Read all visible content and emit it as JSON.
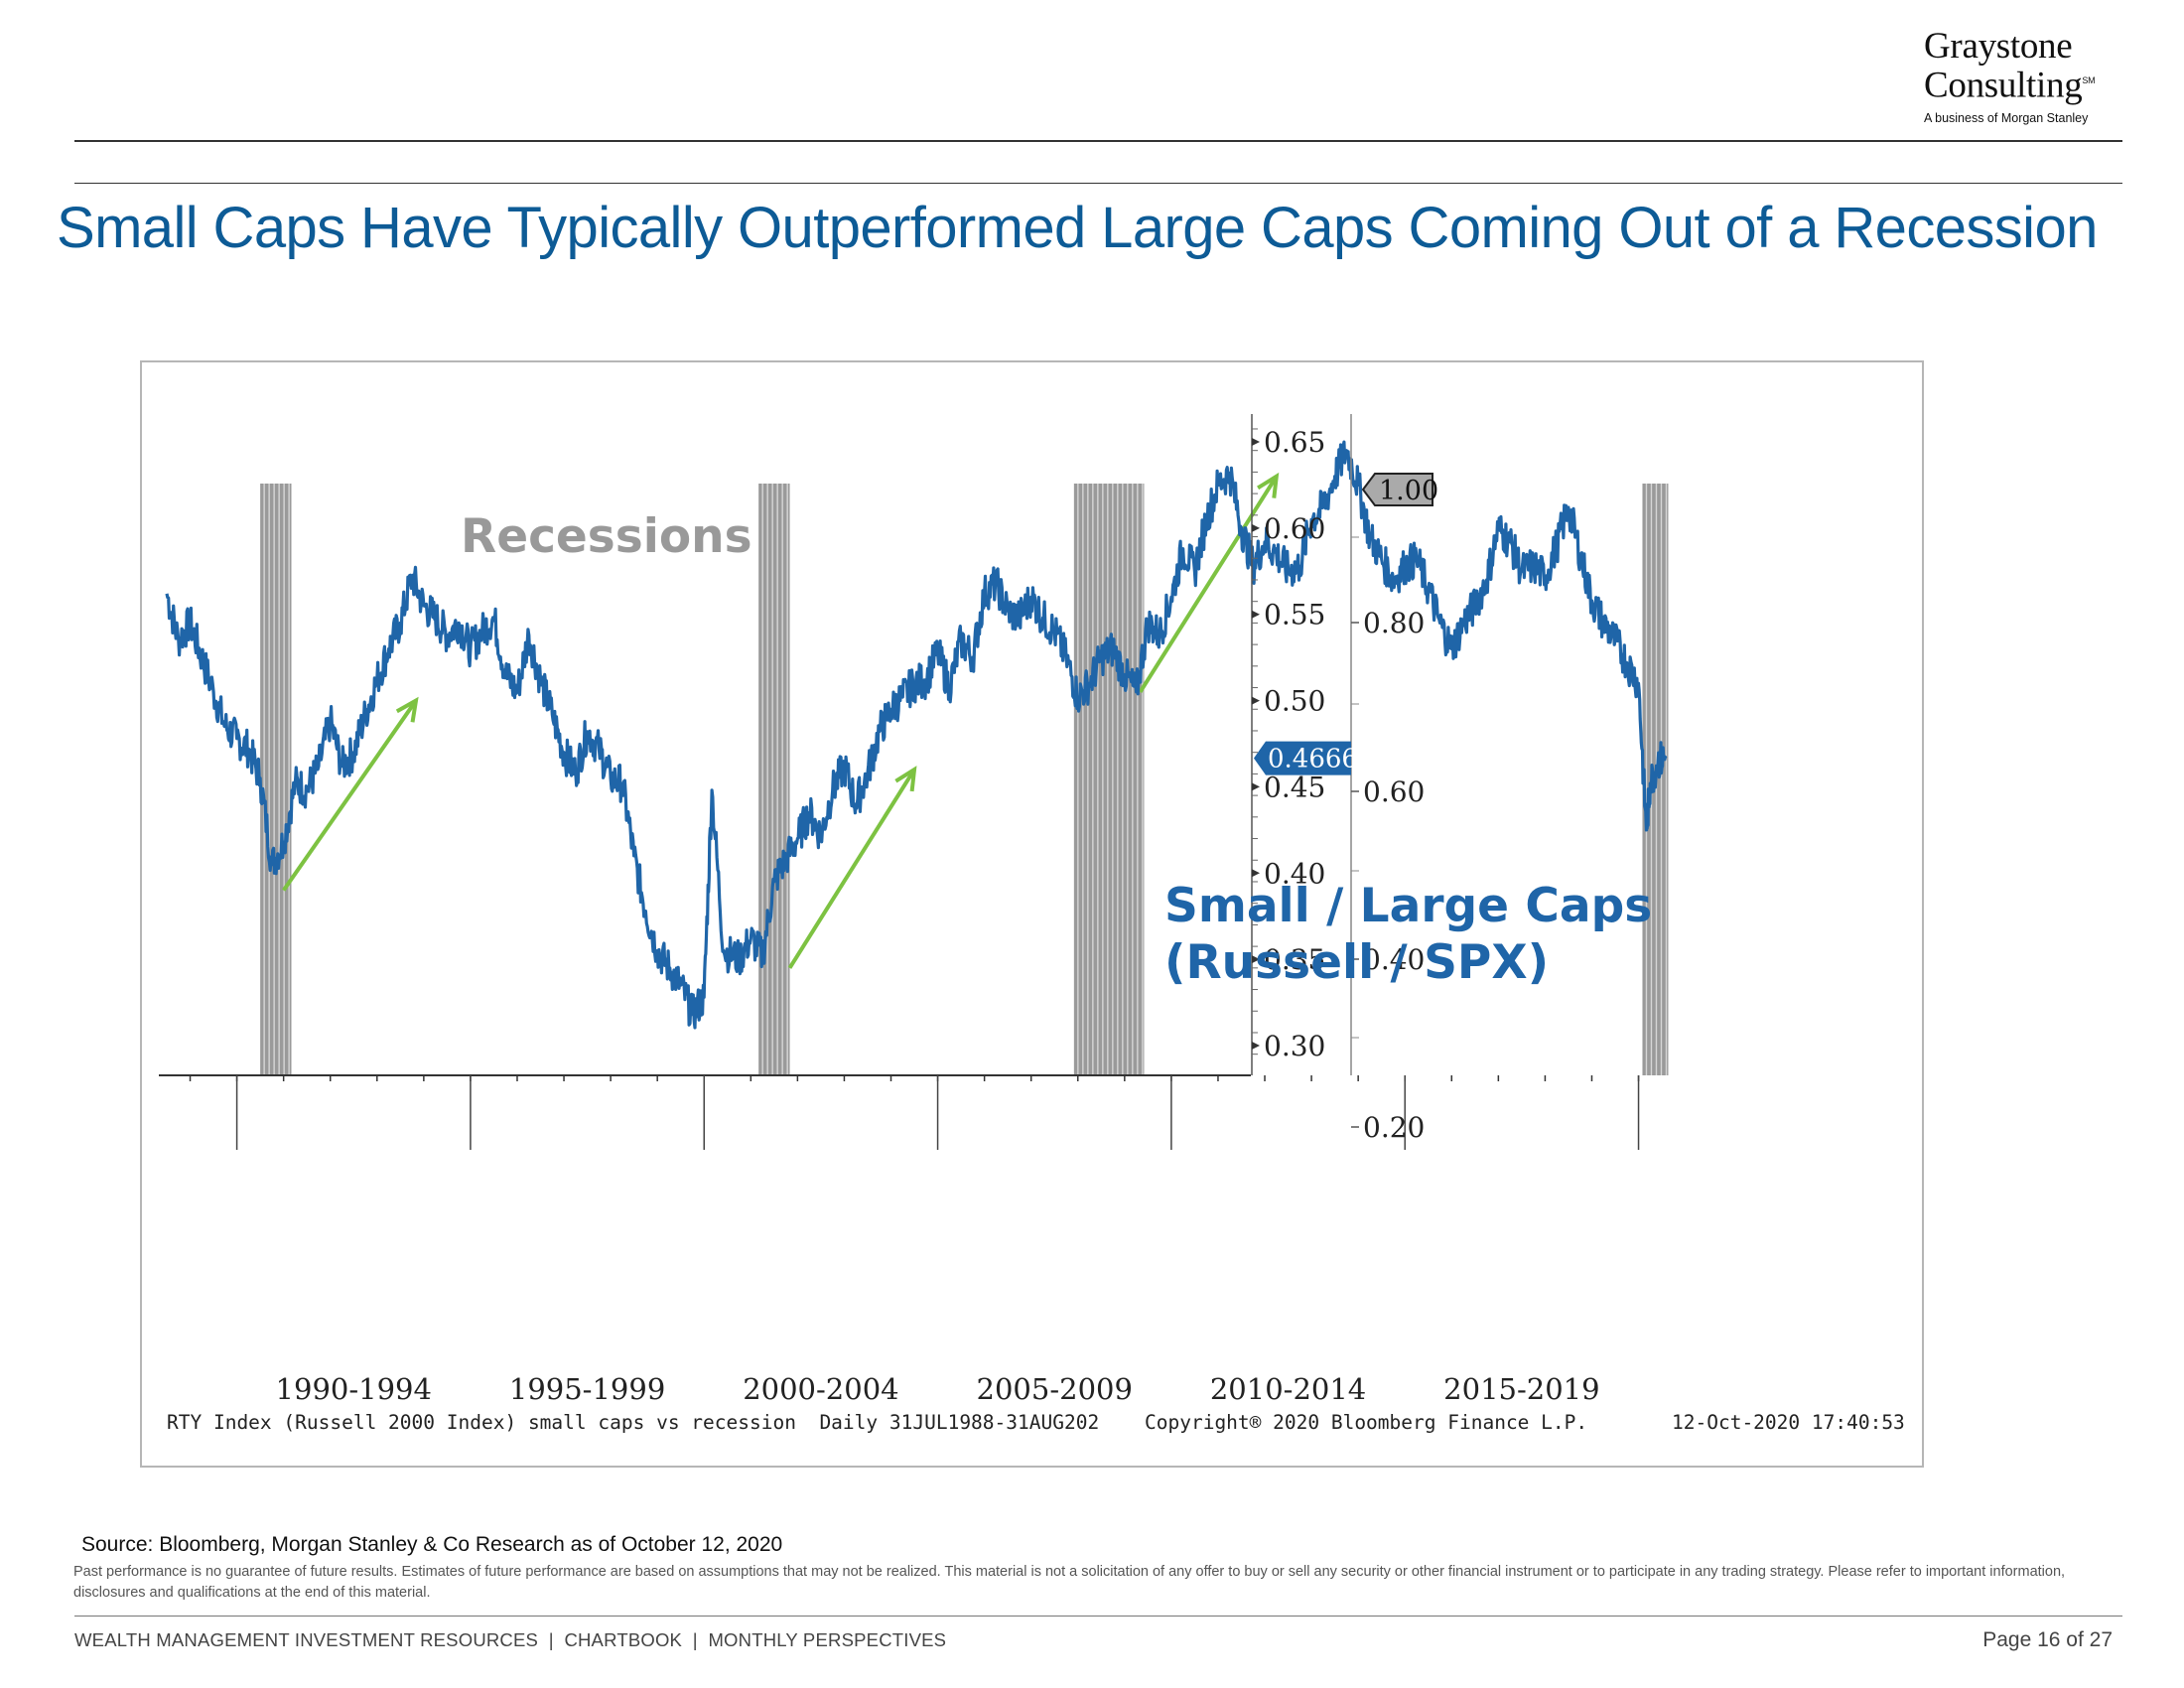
{
  "header": {
    "logo_line1": "Graystone",
    "logo_line2": "Consulting",
    "logo_mark": "SM",
    "logo_sub": "A business of Morgan Stanley"
  },
  "title": "Small Caps Have Typically Outperformed Large Caps Coming Out of a Recession",
  "chart_data": {
    "type": "line",
    "series": [
      {
        "name": "Small / Large Caps (Russell / SPX)",
        "color": "#1f65a8",
        "points": [
          [
            "1988-07",
            0.562
          ],
          [
            "1988-10",
            0.535
          ],
          [
            "1989-01",
            0.545
          ],
          [
            "1989-04",
            0.525
          ],
          [
            "1989-07",
            0.505
          ],
          [
            "1989-10",
            0.485
          ],
          [
            "1990-01",
            0.478
          ],
          [
            "1990-04",
            0.472
          ],
          [
            "1990-07",
            0.455
          ],
          [
            "1990-10",
            0.405
          ],
          [
            "1991-01",
            0.418
          ],
          [
            "1991-04",
            0.452
          ],
          [
            "1991-07",
            0.448
          ],
          [
            "1991-10",
            0.462
          ],
          [
            "1992-01",
            0.488
          ],
          [
            "1992-04",
            0.462
          ],
          [
            "1992-07",
            0.47
          ],
          [
            "1992-10",
            0.492
          ],
          [
            "1993-01",
            0.512
          ],
          [
            "1993-04",
            0.53
          ],
          [
            "1993-07",
            0.545
          ],
          [
            "1993-10",
            0.572
          ],
          [
            "1994-01",
            0.555
          ],
          [
            "1994-04",
            0.548
          ],
          [
            "1994-07",
            0.538
          ],
          [
            "1994-10",
            0.545
          ],
          [
            "1995-01",
            0.53
          ],
          [
            "1995-04",
            0.54
          ],
          [
            "1995-07",
            0.548
          ],
          [
            "1995-10",
            0.515
          ],
          [
            "1996-01",
            0.505
          ],
          [
            "1996-04",
            0.538
          ],
          [
            "1996-07",
            0.512
          ],
          [
            "1996-10",
            0.492
          ],
          [
            "1997-01",
            0.47
          ],
          [
            "1997-04",
            0.458
          ],
          [
            "1997-07",
            0.482
          ],
          [
            "1997-10",
            0.472
          ],
          [
            "1998-01",
            0.455
          ],
          [
            "1998-04",
            0.452
          ],
          [
            "1998-07",
            0.41
          ],
          [
            "1998-10",
            0.378
          ],
          [
            "1999-01",
            0.355
          ],
          [
            "1999-04",
            0.345
          ],
          [
            "1999-07",
            0.335
          ],
          [
            "1999-10",
            0.318
          ],
          [
            "2000-01",
            0.328
          ],
          [
            "2000-03",
            0.448
          ],
          [
            "2000-06",
            0.355
          ],
          [
            "2000-10",
            0.35
          ],
          [
            "2001-01",
            0.362
          ],
          [
            "2001-04",
            0.352
          ],
          [
            "2001-07",
            0.395
          ],
          [
            "2001-10",
            0.408
          ],
          [
            "2002-01",
            0.42
          ],
          [
            "2002-04",
            0.435
          ],
          [
            "2002-07",
            0.422
          ],
          [
            "2002-10",
            0.448
          ],
          [
            "2003-01",
            0.462
          ],
          [
            "2003-04",
            0.44
          ],
          [
            "2003-07",
            0.458
          ],
          [
            "2003-10",
            0.482
          ],
          [
            "2004-01",
            0.495
          ],
          [
            "2004-04",
            0.502
          ],
          [
            "2004-07",
            0.51
          ],
          [
            "2004-10",
            0.512
          ],
          [
            "2005-01",
            0.528
          ],
          [
            "2005-04",
            0.508
          ],
          [
            "2005-07",
            0.535
          ],
          [
            "2005-10",
            0.525
          ],
          [
            "2006-01",
            0.562
          ],
          [
            "2006-04",
            0.568
          ],
          [
            "2006-07",
            0.552
          ],
          [
            "2006-10",
            0.548
          ],
          [
            "2007-01",
            0.56
          ],
          [
            "2007-04",
            0.548
          ],
          [
            "2007-07",
            0.54
          ],
          [
            "2007-10",
            0.525
          ],
          [
            "2008-01",
            0.502
          ],
          [
            "2008-04",
            0.51
          ],
          [
            "2008-07",
            0.525
          ],
          [
            "2008-10",
            0.53
          ],
          [
            "2009-01",
            0.515
          ],
          [
            "2009-04",
            0.505
          ],
          [
            "2009-07",
            0.545
          ],
          [
            "2009-10",
            0.538
          ],
          [
            "2010-01",
            0.56
          ],
          [
            "2010-04",
            0.588
          ],
          [
            "2010-07",
            0.575
          ],
          [
            "2010-10",
            0.605
          ],
          [
            "2011-01",
            0.625
          ],
          [
            "2011-04",
            0.632
          ],
          [
            "2011-07",
            0.6
          ],
          [
            "2011-10",
            0.578
          ],
          [
            "2012-01",
            0.592
          ],
          [
            "2012-04",
            0.585
          ],
          [
            "2012-07",
            0.575
          ],
          [
            "2012-10",
            0.578
          ],
          [
            "2013-01",
            0.605
          ],
          [
            "2013-04",
            0.612
          ],
          [
            "2013-07",
            0.63
          ],
          [
            "2013-10",
            0.645
          ],
          [
            "2014-01",
            0.625
          ],
          [
            "2014-04",
            0.595
          ],
          [
            "2014-07",
            0.582
          ],
          [
            "2014-10",
            0.57
          ],
          [
            "2015-01",
            0.578
          ],
          [
            "2015-04",
            0.582
          ],
          [
            "2015-07",
            0.565
          ],
          [
            "2015-10",
            0.545
          ],
          [
            "2016-01",
            0.53
          ],
          [
            "2016-04",
            0.545
          ],
          [
            "2016-07",
            0.555
          ],
          [
            "2016-10",
            0.57
          ],
          [
            "2017-01",
            0.6
          ],
          [
            "2017-04",
            0.592
          ],
          [
            "2017-07",
            0.575
          ],
          [
            "2017-10",
            0.578
          ],
          [
            "2018-01",
            0.572
          ],
          [
            "2018-04",
            0.59
          ],
          [
            "2018-07",
            0.612
          ],
          [
            "2018-10",
            0.585
          ],
          [
            "2019-01",
            0.558
          ],
          [
            "2019-04",
            0.545
          ],
          [
            "2019-07",
            0.535
          ],
          [
            "2019-10",
            0.522
          ],
          [
            "2020-01",
            0.51
          ],
          [
            "2020-03",
            0.425
          ],
          [
            "2020-04",
            0.452
          ],
          [
            "2020-06",
            0.465
          ],
          [
            "2020-08",
            0.4666
          ]
        ]
      }
    ],
    "x_tick_labels": [
      "1990-1994",
      "1995-1999",
      "2000-2004",
      "2005-2009",
      "2010-2014",
      "2015-2019"
    ],
    "xlim": [
      "1988-07",
      "2020-08"
    ],
    "y_axis_left": {
      "ticks": [
        "0.65",
        "0.60",
        "0.55",
        "0.50",
        "0.45",
        "0.40",
        "0.35",
        "0.30"
      ],
      "ylim": [
        0.29,
        0.665
      ]
    },
    "y_axis_right": {
      "ticks": [
        "1.00",
        "0.80",
        "0.60",
        "0.40",
        "0.20"
      ]
    },
    "recessions": [
      {
        "start": "1990-07",
        "end": "1991-03"
      },
      {
        "start": "2001-03",
        "end": "2001-11"
      },
      {
        "start": "2007-12",
        "end": "2009-06"
      },
      {
        "start": "2020-02",
        "end": "2020-08"
      }
    ],
    "recession_label": "Recessions",
    "series_label_line1": "Small / Large Caps",
    "series_label_line2": "(Russell / SPX)",
    "last_value_tag": "0.4666",
    "right_top_tag": "1.00",
    "arrows": [
      {
        "from": [
          "1991-01",
          0.39
        ],
        "to": [
          "1993-11",
          0.5
        ]
      },
      {
        "from": [
          "2001-11",
          0.345
        ],
        "to": [
          "2004-07",
          0.46
        ]
      },
      {
        "from": [
          "2009-05",
          0.505
        ],
        "to": [
          "2012-04",
          0.63
        ]
      }
    ],
    "arrow_color": "#7dc242",
    "grid": false,
    "footer_left": "RTY Index (Russell 2000 Index) small caps vs recession  Daily 31JUL1988-31AUG202",
    "footer_center": "Copyright® 2020 Bloomberg Finance L.P.",
    "footer_right": "12-Oct-2020 17:40:53"
  },
  "source": "Source: Bloomberg, Morgan Stanley & Co Research as of October 12, 2020",
  "disclaimer": "Past performance is no guarantee of future results. Estimates of future performance are based on assumptions that may not be realized. This material is not a solicitation of any offer to buy or sell any security or other financial instrument or to participate in any trading strategy. Please refer to important information, disclosures and qualifications at the end of this material.",
  "footer": {
    "left": "WEALTH MANAGEMENT INVESTMENT RESOURCES  |  CHARTBOOK  |  MONTHLY PERSPECTIVES",
    "page": "Page 16 of 27"
  }
}
